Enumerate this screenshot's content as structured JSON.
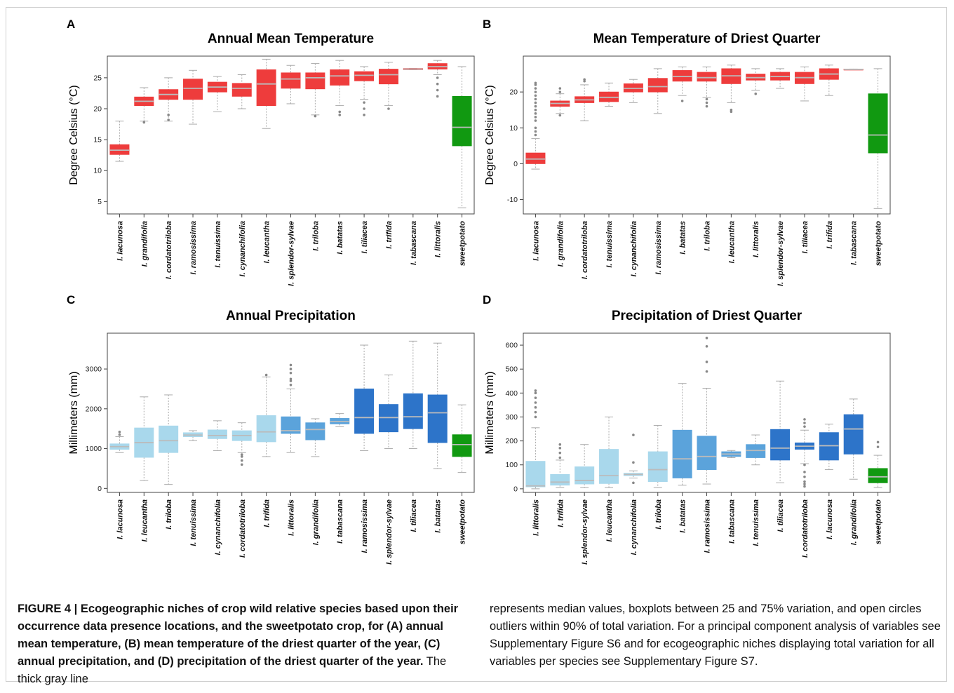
{
  "caption": {
    "figure_label": "FIGURE 4 |",
    "bold_text": " Ecogeographic niches of crop wild relative species based upon their occurrence data presence locations, and the sweetpotato crop, for (A) annual mean temperature, (B) mean temperature of the driest quarter of the year, (C) annual precipitation, and (D) precipitation of the driest quarter of the year.",
    "regular_text_left": " The thick gray line",
    "regular_text_right": "represents median values, boxplots between 25 and 75% variation, and open circles outliers within 90% of total variation. For a principal component analysis of variables see Supplementary Figure S6 and for ecogeographic niches displaying total variation for all variables per species see Supplementary Figure S7."
  },
  "colors": {
    "red": "#ee3c3c",
    "green": "#119911",
    "light_blue": "#a9d8ec",
    "mid_blue": "#5ba3db",
    "dark_blue": "#2d74c9",
    "median": "#bbbbbb",
    "whisker": "#aaaaaa",
    "outlier": "#888888"
  },
  "chart_data": [
    {
      "panel": "A",
      "type": "boxplot",
      "title": "Annual Mean Temperature",
      "ylabel": "Degree Celsius (°C)",
      "ylim": [
        3,
        28.5
      ],
      "yticks": [
        5,
        10,
        15,
        20,
        25
      ],
      "categories": [
        "I. lacunosa",
        "I. grandifolia",
        "I. cordatotriloba",
        "I. ramosissima",
        "I. tenuissima",
        "I. cynanchifolia",
        "I. leucantha",
        "I. splendor-sylvae",
        "I. triloba",
        "I. batatas",
        "I. tiliacea",
        "I. trifida",
        "I. tabascana",
        "I. littoralis",
        "sweetpotato"
      ],
      "colors": [
        "red",
        "red",
        "red",
        "red",
        "red",
        "red",
        "red",
        "red",
        "red",
        "red",
        "red",
        "red",
        "red",
        "red",
        "green"
      ],
      "boxes": [
        {
          "min": 11.5,
          "q1": 12.6,
          "median": 13.3,
          "q3": 14.2,
          "max": 18.0,
          "outliers": []
        },
        {
          "min": 18.0,
          "q1": 20.5,
          "median": 21.2,
          "q3": 21.9,
          "max": 23.4,
          "outliers": [
            17.8
          ]
        },
        {
          "min": 18.0,
          "q1": 21.5,
          "median": 22.3,
          "q3": 23.1,
          "max": 25.0,
          "outliers": [
            18.2,
            19.0
          ]
        },
        {
          "min": 17.5,
          "q1": 21.5,
          "median": 23.3,
          "q3": 24.8,
          "max": 26.2,
          "outliers": []
        },
        {
          "min": 19.5,
          "q1": 22.7,
          "median": 23.5,
          "q3": 24.3,
          "max": 25.2,
          "outliers": []
        },
        {
          "min": 20.0,
          "q1": 22.0,
          "median": 23.3,
          "q3": 24.1,
          "max": 25.5,
          "outliers": []
        },
        {
          "min": 16.8,
          "q1": 20.5,
          "median": 24.0,
          "q3": 26.3,
          "max": 28.0,
          "outliers": []
        },
        {
          "min": 20.8,
          "q1": 23.3,
          "median": 24.8,
          "q3": 25.8,
          "max": 27.0,
          "outliers": []
        },
        {
          "min": 19.0,
          "q1": 23.2,
          "median": 25.0,
          "q3": 25.8,
          "max": 27.3,
          "outliers": [
            18.8
          ]
        },
        {
          "min": 20.5,
          "q1": 23.8,
          "median": 25.3,
          "q3": 26.3,
          "max": 27.8,
          "outliers": [
            19.0,
            19.5
          ]
        },
        {
          "min": 21.5,
          "q1": 24.5,
          "median": 25.4,
          "q3": 26.0,
          "max": 26.8,
          "outliers": [
            19.0,
            20.0,
            21.0
          ]
        },
        {
          "min": 20.5,
          "q1": 24.0,
          "median": 25.5,
          "q3": 26.4,
          "max": 27.5,
          "outliers": [
            20.0
          ]
        },
        {
          "min": 26.3,
          "q1": 26.3,
          "median": 26.4,
          "q3": 26.5,
          "max": 26.5,
          "outliers": []
        },
        {
          "min": 25.5,
          "q1": 26.4,
          "median": 26.8,
          "q3": 27.3,
          "max": 27.8,
          "outliers": [
            22.0,
            23.0,
            24.0,
            25.0
          ]
        },
        {
          "min": 4.0,
          "q1": 14.0,
          "median": 17.0,
          "q3": 22.0,
          "max": 26.8,
          "outliers": []
        }
      ]
    },
    {
      "panel": "B",
      "type": "boxplot",
      "title": "Mean Temperature of Driest Quarter",
      "ylabel": "Degree Celsius (°C)",
      "ylim": [
        -14,
        30
      ],
      "yticks": [
        -10,
        0,
        10,
        20
      ],
      "categories": [
        "I. lacunosa",
        "I. grandifolia",
        "I. cordatotriloba",
        "I. tenuissima",
        "I. cynanchifolia",
        "I. ramosissima",
        "I. batatas",
        "I. triloba",
        "I. leucantha",
        "I. littoralis",
        "I. splendor-sylvae",
        "I. tiliacea",
        "I. trifida",
        "I. tabascana",
        "sweetpotato"
      ],
      "colors": [
        "red",
        "red",
        "red",
        "red",
        "red",
        "red",
        "red",
        "red",
        "red",
        "red",
        "red",
        "red",
        "red",
        "red",
        "green"
      ],
      "boxes": [
        {
          "min": -1.5,
          "q1": 0.0,
          "median": 1.3,
          "q3": 3.0,
          "max": 7.0,
          "outliers": [
            8.0,
            9.0,
            10.0,
            12.0,
            13.0,
            14.0,
            15.0,
            16.0,
            17.0,
            18.0,
            19.0,
            20.0,
            21.0,
            22.0,
            22.5
          ]
        },
        {
          "min": 14.0,
          "q1": 16.0,
          "median": 16.8,
          "q3": 17.5,
          "max": 19.5,
          "outliers": [
            13.5,
            20.0,
            21.0
          ]
        },
        {
          "min": 12.0,
          "q1": 17.0,
          "median": 17.8,
          "q3": 18.7,
          "max": 22.0,
          "outliers": [
            23.0,
            23.5
          ]
        },
        {
          "min": 16.0,
          "q1": 17.3,
          "median": 18.5,
          "q3": 20.0,
          "max": 22.5,
          "outliers": []
        },
        {
          "min": 17.0,
          "q1": 20.0,
          "median": 21.0,
          "q3": 22.3,
          "max": 23.5,
          "outliers": []
        },
        {
          "min": 14.0,
          "q1": 20.0,
          "median": 21.5,
          "q3": 23.8,
          "max": 26.5,
          "outliers": []
        },
        {
          "min": 19.0,
          "q1": 23.0,
          "median": 24.3,
          "q3": 26.0,
          "max": 27.0,
          "outliers": [
            17.5
          ]
        },
        {
          "min": 18.5,
          "q1": 23.0,
          "median": 24.0,
          "q3": 25.5,
          "max": 27.0,
          "outliers": [
            16.0,
            17.0,
            18.0
          ]
        },
        {
          "min": 17.0,
          "q1": 22.3,
          "median": 24.5,
          "q3": 26.5,
          "max": 27.5,
          "outliers": [
            14.5,
            15.0
          ]
        },
        {
          "min": 20.5,
          "q1": 23.3,
          "median": 24.0,
          "q3": 25.0,
          "max": 26.5,
          "outliers": [
            19.5
          ]
        },
        {
          "min": 21.0,
          "q1": 23.3,
          "median": 24.3,
          "q3": 25.5,
          "max": 26.5,
          "outliers": []
        },
        {
          "min": 17.5,
          "q1": 22.3,
          "median": 24.0,
          "q3": 25.5,
          "max": 27.0,
          "outliers": []
        },
        {
          "min": 19.0,
          "q1": 23.5,
          "median": 25.0,
          "q3": 26.5,
          "max": 27.5,
          "outliers": []
        },
        {
          "min": 26.2,
          "q1": 26.2,
          "median": 26.3,
          "q3": 26.4,
          "max": 26.4,
          "outliers": []
        },
        {
          "min": -12.5,
          "q1": 3.0,
          "median": 8.0,
          "q3": 19.5,
          "max": 26.5,
          "outliers": []
        }
      ]
    },
    {
      "panel": "C",
      "type": "boxplot",
      "title": "Annual Precipitation",
      "ylabel": "Millimeters (mm)",
      "ylim": [
        -100,
        3900
      ],
      "yticks": [
        0,
        1000,
        2000,
        3000
      ],
      "categories": [
        "I. lacunosa",
        "I. leucantha",
        "I. triloba",
        "I. tenuissima",
        "I. cynanchifolia",
        "I. cordatotriloba",
        "I. trifida",
        "I. littoralis",
        "I. grandifolia",
        "I. tabascana",
        "I. ramosissima",
        "I. splendor-sylvae",
        "I. tiliacea",
        "I. batatas",
        "sweetpotato"
      ],
      "colors": [
        "light_blue",
        "light_blue",
        "light_blue",
        "light_blue",
        "light_blue",
        "light_blue",
        "light_blue",
        "mid_blue",
        "mid_blue",
        "mid_blue",
        "dark_blue",
        "dark_blue",
        "dark_blue",
        "dark_blue",
        "green"
      ],
      "boxes": [
        {
          "min": 900,
          "q1": 980,
          "median": 1050,
          "q3": 1120,
          "max": 1300,
          "outliers": [
            1350,
            1420
          ]
        },
        {
          "min": 200,
          "q1": 780,
          "median": 1150,
          "q3": 1520,
          "max": 2300,
          "outliers": []
        },
        {
          "min": 100,
          "q1": 900,
          "median": 1200,
          "q3": 1570,
          "max": 2350,
          "outliers": []
        },
        {
          "min": 1200,
          "q1": 1300,
          "median": 1340,
          "q3": 1400,
          "max": 1450,
          "outliers": []
        },
        {
          "min": 950,
          "q1": 1250,
          "median": 1330,
          "q3": 1470,
          "max": 1700,
          "outliers": []
        },
        {
          "min": 900,
          "q1": 1200,
          "median": 1330,
          "q3": 1450,
          "max": 1650,
          "outliers": [
            600,
            700,
            800,
            850
          ]
        },
        {
          "min": 800,
          "q1": 1170,
          "median": 1420,
          "q3": 1830,
          "max": 2800,
          "outliers": [
            2850
          ]
        },
        {
          "min": 900,
          "q1": 1380,
          "median": 1450,
          "q3": 1800,
          "max": 2500,
          "outliers": [
            2600,
            2700,
            2750,
            2900,
            3000,
            3100
          ]
        },
        {
          "min": 800,
          "q1": 1220,
          "median": 1480,
          "q3": 1650,
          "max": 1750,
          "outliers": []
        },
        {
          "min": 1550,
          "q1": 1620,
          "median": 1680,
          "q3": 1760,
          "max": 1880,
          "outliers": []
        },
        {
          "min": 950,
          "q1": 1380,
          "median": 1780,
          "q3": 2500,
          "max": 3600,
          "outliers": []
        },
        {
          "min": 1000,
          "q1": 1420,
          "median": 1780,
          "q3": 2110,
          "max": 2850,
          "outliers": []
        },
        {
          "min": 1000,
          "q1": 1500,
          "median": 1800,
          "q3": 2380,
          "max": 3700,
          "outliers": []
        },
        {
          "min": 500,
          "q1": 1150,
          "median": 1900,
          "q3": 2350,
          "max": 3650,
          "outliers": []
        },
        {
          "min": 400,
          "q1": 800,
          "median": 1100,
          "q3": 1350,
          "max": 2100,
          "outliers": []
        }
      ]
    },
    {
      "panel": "D",
      "type": "boxplot",
      "title": "Precipitation of Driest Quarter",
      "ylabel": "Millimeters (mm)",
      "ylim": [
        -15,
        650
      ],
      "yticks": [
        0,
        100,
        200,
        300,
        400,
        500,
        600
      ],
      "categories": [
        "I. littoralis",
        "I. trifida",
        "I. splendor-sylvae",
        "I. leucantha",
        "I. cynanchifolia",
        "I. triloba",
        "I. batatas",
        "I. ramosissima",
        "I. tabascana",
        "I. tenuissima",
        "I. tiliacea",
        "I. cordatotriloba",
        "I. lacunosa",
        "I. grandifolia",
        "sweetpotato"
      ],
      "colors": [
        "light_blue",
        "light_blue",
        "light_blue",
        "light_blue",
        "light_blue",
        "light_blue",
        "mid_blue",
        "mid_blue",
        "mid_blue",
        "mid_blue",
        "dark_blue",
        "dark_blue",
        "dark_blue",
        "dark_blue",
        "green"
      ],
      "boxes": [
        {
          "min": 0,
          "q1": 8,
          "median": 12,
          "q3": 115,
          "max": 255,
          "outliers": [
            300,
            320,
            340,
            360,
            380,
            400,
            410
          ]
        },
        {
          "min": 5,
          "q1": 15,
          "median": 28,
          "q3": 60,
          "max": 120,
          "outliers": [
            130,
            150,
            170,
            185
          ]
        },
        {
          "min": 5,
          "q1": 20,
          "median": 35,
          "q3": 92,
          "max": 185,
          "outliers": []
        },
        {
          "min": 5,
          "q1": 22,
          "median": 55,
          "q3": 165,
          "max": 300,
          "outliers": []
        },
        {
          "min": 45,
          "q1": 55,
          "median": 60,
          "q3": 65,
          "max": 75,
          "outliers": [
            25,
            110,
            225
          ]
        },
        {
          "min": 5,
          "q1": 30,
          "median": 80,
          "q3": 155,
          "max": 265,
          "outliers": []
        },
        {
          "min": 15,
          "q1": 45,
          "median": 125,
          "q3": 245,
          "max": 440,
          "outliers": []
        },
        {
          "min": 20,
          "q1": 80,
          "median": 135,
          "q3": 220,
          "max": 420,
          "outliers": [
            490,
            530,
            595,
            630
          ]
        },
        {
          "min": 130,
          "q1": 135,
          "median": 145,
          "q3": 155,
          "max": 160,
          "outliers": []
        },
        {
          "min": 100,
          "q1": 130,
          "median": 160,
          "q3": 185,
          "max": 225,
          "outliers": []
        },
        {
          "min": 25,
          "q1": 120,
          "median": 170,
          "q3": 248,
          "max": 450,
          "outliers": []
        },
        {
          "min": 105,
          "q1": 165,
          "median": 178,
          "q3": 192,
          "max": 245,
          "outliers": [
            10,
            20,
            30,
            50,
            70,
            100,
            260,
            275,
            290
          ]
        },
        {
          "min": 80,
          "q1": 120,
          "median": 180,
          "q3": 235,
          "max": 270,
          "outliers": []
        },
        {
          "min": 40,
          "q1": 145,
          "median": 250,
          "q3": 310,
          "max": 375,
          "outliers": []
        },
        {
          "min": 5,
          "q1": 25,
          "median": 50,
          "q3": 85,
          "max": 140,
          "outliers": [
            175,
            195
          ]
        }
      ]
    }
  ]
}
